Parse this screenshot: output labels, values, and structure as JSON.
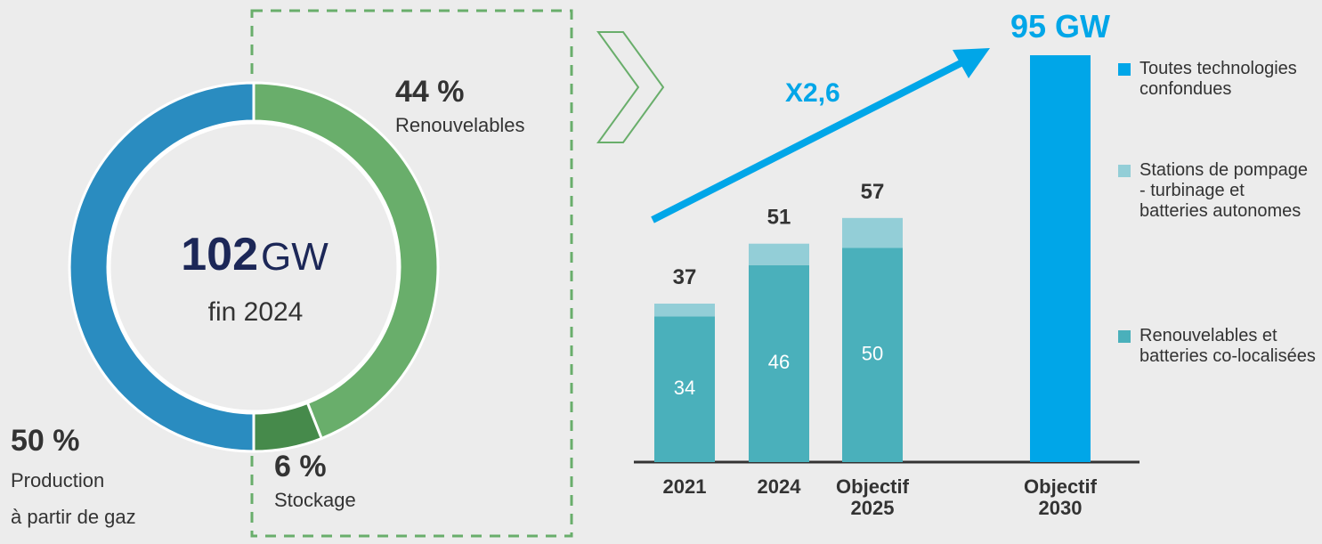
{
  "chart_data": [
    {
      "type": "pie",
      "center_value": "102",
      "center_unit": "GW",
      "center_label": "fin 2024",
      "labels": [
        "Renouvelables",
        "Stockage",
        "Production\nà partir de gaz"
      ],
      "values": [
        44,
        6,
        50
      ],
      "value_labels": [
        "44 %",
        "6 %",
        "50 %"
      ],
      "colors": [
        "#69ae6b",
        "#468a4b",
        "#2a8cc0"
      ]
    },
    {
      "type": "bar",
      "stacked": true,
      "categories": [
        "2021",
        "2024",
        "Objectif\n2025",
        "Objectif\n2030"
      ],
      "series": [
        {
          "name": "Toutes technologies confondues",
          "color": "#00a6e8",
          "values": [
            null,
            null,
            null,
            95
          ],
          "value_labels": [
            null,
            null,
            null,
            "95 GW"
          ]
        },
        {
          "name": "Stations de pompage - turbinage et batteries autonomes",
          "color": "#93ced7",
          "values": [
            3,
            5,
            7,
            null
          ]
        },
        {
          "name": "Renouvelables et batteries co-localisées",
          "color": "#4ab0bb",
          "values": [
            34,
            46,
            50,
            null
          ]
        }
      ],
      "totals": [
        37,
        51,
        57,
        null
      ],
      "annotation": "X2,6",
      "ylim": [
        0,
        100
      ]
    }
  ]
}
